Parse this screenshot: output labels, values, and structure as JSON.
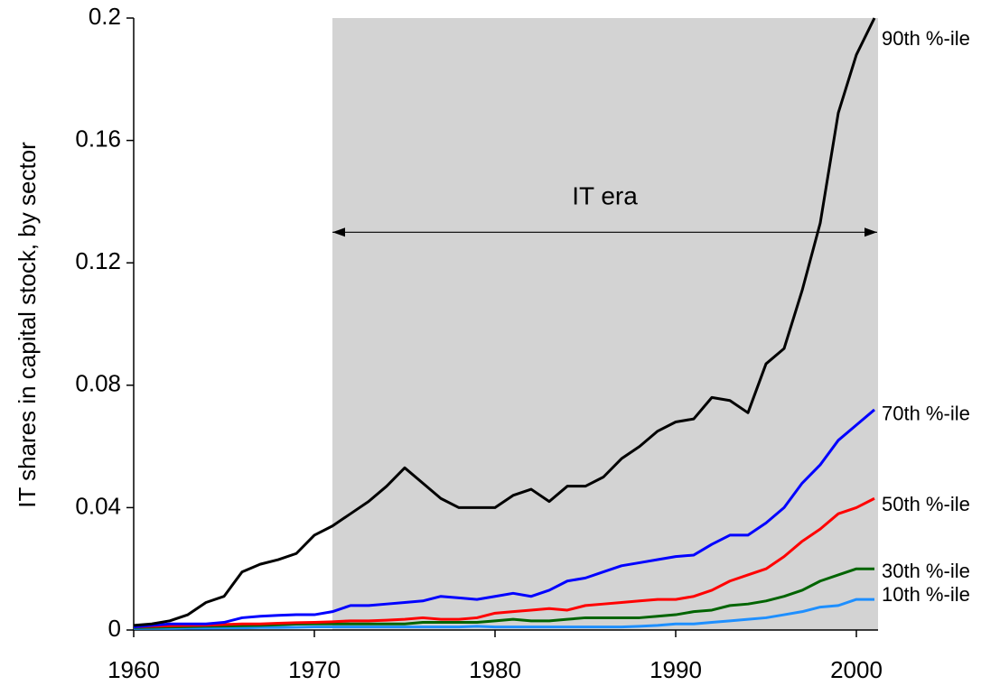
{
  "chart_data": {
    "type": "line",
    "ylabel": "IT shares in capital stock, by sector",
    "x": [
      1960,
      1961,
      1962,
      1963,
      1964,
      1965,
      1966,
      1967,
      1968,
      1969,
      1970,
      1971,
      1972,
      1973,
      1974,
      1975,
      1976,
      1977,
      1978,
      1979,
      1980,
      1981,
      1982,
      1983,
      1984,
      1985,
      1986,
      1987,
      1988,
      1989,
      1990,
      1991,
      1992,
      1993,
      1994,
      1995,
      1996,
      1997,
      1998,
      1999,
      2000,
      2001
    ],
    "series": [
      {
        "name": "90th %-ile",
        "color": "#000000",
        "values": [
          0.0015,
          0.002,
          0.003,
          0.005,
          0.009,
          0.011,
          0.019,
          0.0215,
          0.023,
          0.025,
          0.031,
          0.034,
          0.038,
          0.042,
          0.047,
          0.053,
          0.048,
          0.043,
          0.04,
          0.04,
          0.04,
          0.044,
          0.046,
          0.042,
          0.047,
          0.047,
          0.05,
          0.056,
          0.06,
          0.065,
          0.068,
          0.069,
          0.076,
          0.075,
          0.071,
          0.087,
          0.092,
          0.111,
          0.133,
          0.169,
          0.188,
          0.2
        ]
      },
      {
        "name": "70th %-ile",
        "color": "#0000ff",
        "values": [
          0.001,
          0.0015,
          0.002,
          0.002,
          0.002,
          0.0025,
          0.004,
          0.0045,
          0.0048,
          0.005,
          0.005,
          0.006,
          0.008,
          0.008,
          0.0085,
          0.009,
          0.0095,
          0.011,
          0.0105,
          0.01,
          0.011,
          0.012,
          0.011,
          0.013,
          0.016,
          0.017,
          0.019,
          0.021,
          0.022,
          0.023,
          0.024,
          0.0245,
          0.028,
          0.031,
          0.031,
          0.035,
          0.04,
          0.048,
          0.054,
          0.062,
          0.067,
          0.072
        ]
      },
      {
        "name": "50th %-ile",
        "color": "#ff0000",
        "values": [
          0.001,
          0.0012,
          0.0014,
          0.0015,
          0.0016,
          0.0018,
          0.002,
          0.002,
          0.0022,
          0.0024,
          0.0025,
          0.0027,
          0.003,
          0.003,
          0.0032,
          0.0035,
          0.004,
          0.0035,
          0.0035,
          0.004,
          0.0055,
          0.006,
          0.0065,
          0.007,
          0.0065,
          0.008,
          0.0085,
          0.009,
          0.0095,
          0.01,
          0.01,
          0.011,
          0.013,
          0.016,
          0.018,
          0.02,
          0.024,
          0.029,
          0.033,
          0.038,
          0.04,
          0.043
        ]
      },
      {
        "name": "30th %-ile",
        "color": "#006400",
        "values": [
          0.0008,
          0.0009,
          0.001,
          0.0011,
          0.0012,
          0.0013,
          0.0014,
          0.0015,
          0.0017,
          0.0019,
          0.002,
          0.002,
          0.002,
          0.002,
          0.002,
          0.002,
          0.0025,
          0.0025,
          0.0025,
          0.0025,
          0.003,
          0.0035,
          0.003,
          0.003,
          0.0035,
          0.004,
          0.004,
          0.004,
          0.004,
          0.0045,
          0.005,
          0.006,
          0.0065,
          0.008,
          0.0085,
          0.0095,
          0.011,
          0.013,
          0.016,
          0.018,
          0.02,
          0.02
        ]
      },
      {
        "name": "10th %-ile",
        "color": "#1e8fff",
        "values": [
          0.0005,
          0.0005,
          0.0005,
          0.0006,
          0.0006,
          0.0007,
          0.0007,
          0.0008,
          0.0008,
          0.0009,
          0.001,
          0.001,
          0.001,
          0.001,
          0.001,
          0.001,
          0.001,
          0.001,
          0.001,
          0.0012,
          0.001,
          0.001,
          0.001,
          0.001,
          0.001,
          0.001,
          0.001,
          0.001,
          0.0012,
          0.0015,
          0.002,
          0.002,
          0.0025,
          0.003,
          0.0035,
          0.004,
          0.005,
          0.006,
          0.0075,
          0.008,
          0.01,
          0.01
        ]
      }
    ],
    "shade": {
      "label": "IT era",
      "range": [
        1971,
        2001
      ],
      "arrow_y": 0.13
    },
    "xlim": [
      1960,
      2001
    ],
    "xticks": [
      1960,
      1970,
      1980,
      1990,
      2000
    ],
    "ylim": [
      0,
      0.2
    ],
    "yticks": [
      0,
      0.04,
      0.08,
      0.12,
      0.16,
      0.2
    ],
    "grid": false
  }
}
